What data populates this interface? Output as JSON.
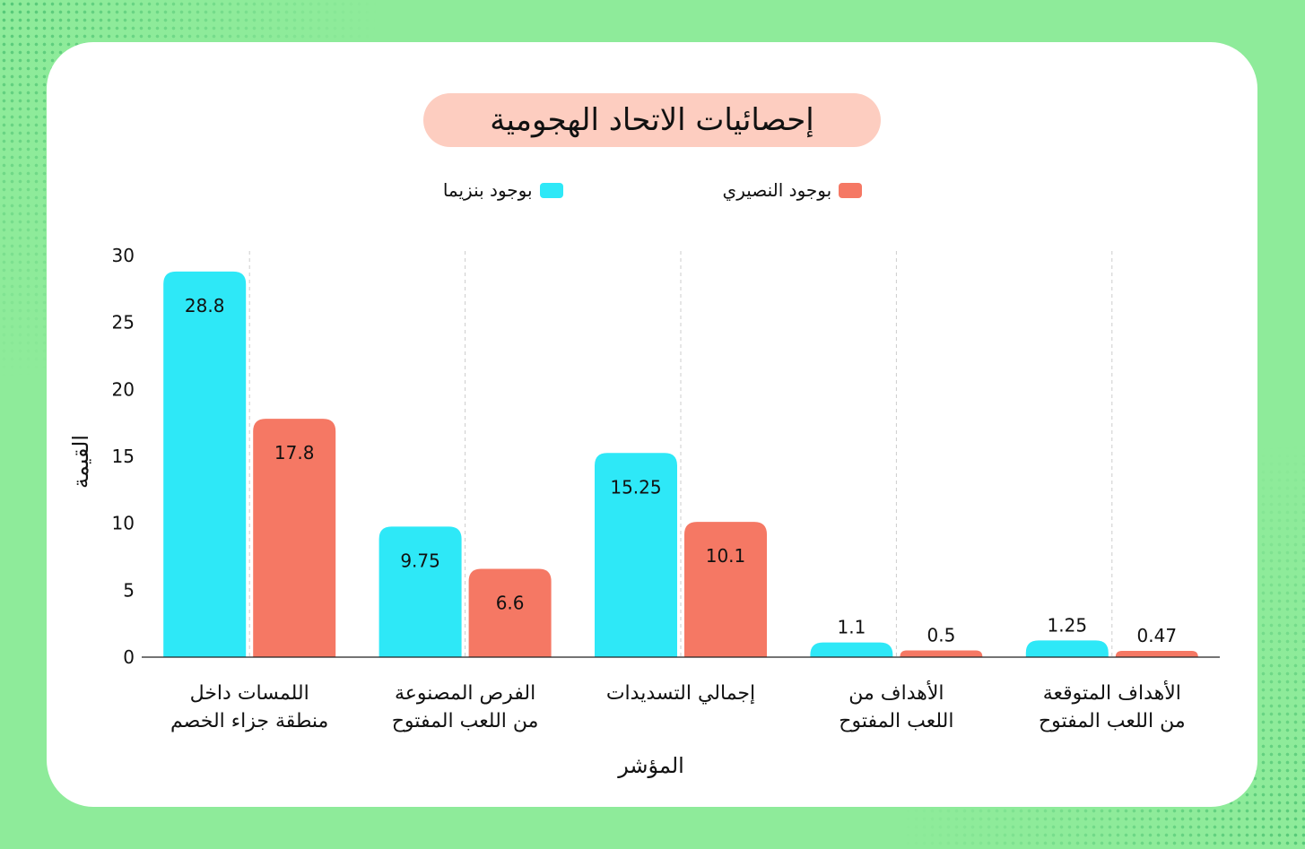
{
  "chart_data": {
    "type": "bar",
    "title": "إحصائيات الاتحاد الهجومية",
    "xlabel": "المؤشر",
    "ylabel": "القيمة",
    "ylim": [
      0,
      30
    ],
    "yticks": [
      0,
      5,
      10,
      15,
      20,
      25,
      30
    ],
    "categories": [
      [
        "اللمسات داخل",
        "منطقة جزاء الخصم"
      ],
      [
        "الفرص المصنوعة",
        "من اللعب المفتوح"
      ],
      [
        "إجمالي التسديدات"
      ],
      [
        "الأهداف من",
        "اللعب المفتوح"
      ],
      [
        "الأهداف المتوقعة",
        "من اللعب المفتوح"
      ]
    ],
    "series": [
      {
        "name": "بوجود بنزيما",
        "color": "#2ee8f7",
        "values": [
          28.8,
          9.75,
          15.25,
          1.1,
          1.25
        ],
        "labels": [
          "28.8",
          "9.75",
          "15.25",
          "1.1",
          "1.25"
        ]
      },
      {
        "name": "بوجود النصيري",
        "color": "#f57864",
        "values": [
          17.8,
          6.6,
          10.1,
          0.5,
          0.47
        ],
        "labels": [
          "17.8",
          "6.6",
          "10.1",
          "0.5",
          "0.47"
        ]
      }
    ],
    "legend_order": [
      1,
      0
    ],
    "legend_position": "top-center",
    "grid": "vertical dashed between bars"
  }
}
